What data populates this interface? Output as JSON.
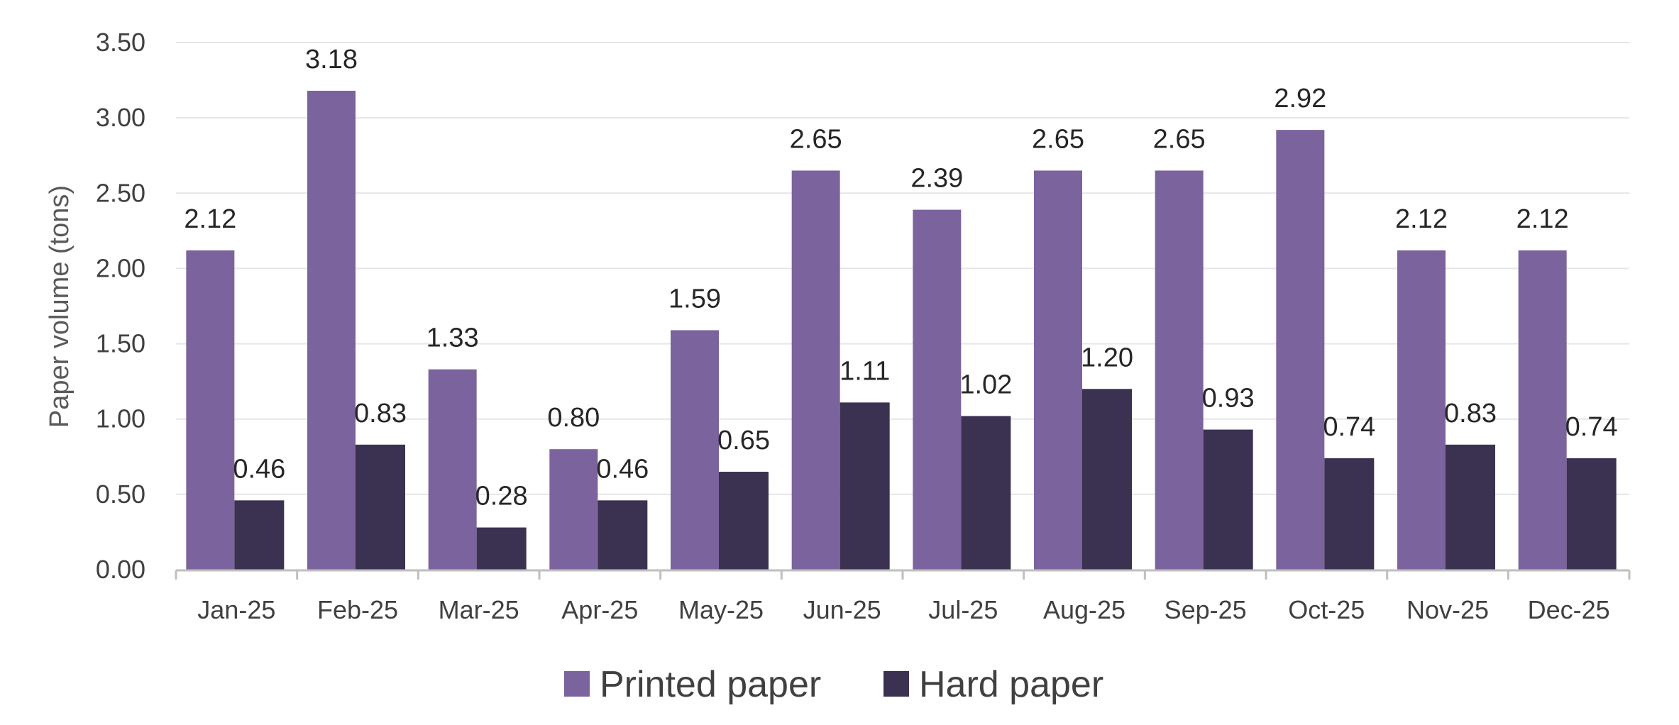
{
  "chart_data": {
    "type": "bar",
    "title": "",
    "xlabel": "",
    "ylabel": "Paper volume (tons)",
    "ylim": [
      0,
      3.5
    ],
    "y_ticks": [
      "0.00",
      "0.50",
      "1.00",
      "1.50",
      "2.00",
      "2.50",
      "3.00",
      "3.50"
    ],
    "grid": true,
    "legend_position": "bottom",
    "categories": [
      "Jan-25",
      "Feb-25",
      "Mar-25",
      "Apr-25",
      "May-25",
      "Jun-25",
      "Jul-25",
      "Aug-25",
      "Sep-25",
      "Oct-25",
      "Nov-25",
      "Dec-25"
    ],
    "series": [
      {
        "name": "Printed paper",
        "color": "#7b649d",
        "values": [
          2.12,
          3.18,
          1.33,
          0.8,
          1.59,
          2.65,
          2.39,
          2.65,
          2.65,
          2.92,
          2.12,
          2.12
        ],
        "labels": [
          "2.12",
          "3.18",
          "1.33",
          "0.80",
          "1.59",
          "2.65",
          "2.39",
          "2.65",
          "2.65",
          "2.92",
          "2.12",
          "2.12"
        ]
      },
      {
        "name": "Hard paper",
        "color": "#3b3150",
        "values": [
          0.46,
          0.83,
          0.28,
          0.46,
          0.65,
          1.11,
          1.02,
          1.2,
          0.93,
          0.74,
          0.83,
          0.74
        ],
        "labels": [
          "0.46",
          "0.83",
          "0.28",
          "0.46",
          "0.65",
          "1.11",
          "1.02",
          "1.20",
          "0.93",
          "0.74",
          "0.83",
          "0.74"
        ]
      }
    ]
  }
}
